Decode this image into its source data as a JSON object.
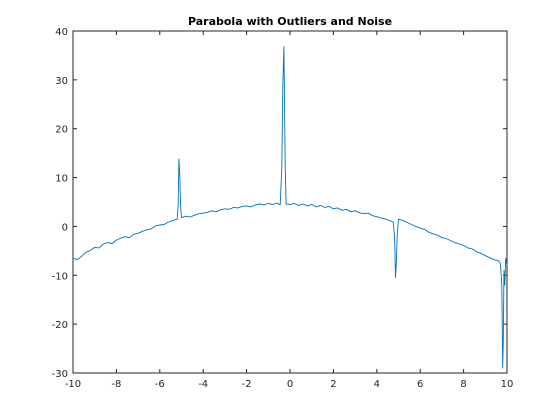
{
  "chart_data": {
    "type": "line",
    "title": "Parabola with Outliers and Noise",
    "xlabel": "",
    "ylabel": "",
    "xlim": [
      -10,
      10
    ],
    "ylim": [
      -30,
      40
    ],
    "xticks": [
      -10,
      -8,
      -6,
      -4,
      -2,
      0,
      2,
      4,
      6,
      8,
      10
    ],
    "yticks": [
      -30,
      -20,
      -10,
      0,
      10,
      20,
      30,
      40
    ],
    "grid": false,
    "legend": "none",
    "series": [
      {
        "color": "#0072bd",
        "curve": "-0.12*(x+0.5)^2 + 4.7 with small noise",
        "points": [
          [
            -10.0,
            -6.5
          ],
          [
            -9.8,
            -6.8
          ],
          [
            -9.6,
            -6.1
          ],
          [
            -9.4,
            -5.3
          ],
          [
            -9.2,
            -4.9
          ],
          [
            -9.0,
            -4.3
          ],
          [
            -8.8,
            -4.4
          ],
          [
            -8.6,
            -3.6
          ],
          [
            -8.4,
            -3.3
          ],
          [
            -8.2,
            -3.5
          ],
          [
            -8.0,
            -2.8
          ],
          [
            -7.8,
            -2.4
          ],
          [
            -7.6,
            -2.1
          ],
          [
            -7.4,
            -2.3
          ],
          [
            -7.2,
            -1.6
          ],
          [
            -7.0,
            -1.4
          ],
          [
            -6.8,
            -1.0
          ],
          [
            -6.6,
            -0.7
          ],
          [
            -6.4,
            -0.5
          ],
          [
            -6.2,
            0.1
          ],
          [
            -6.0,
            0.3
          ],
          [
            -5.8,
            0.4
          ],
          [
            -5.6,
            0.9
          ],
          [
            -5.4,
            1.2
          ],
          [
            -5.2,
            1.5
          ],
          [
            -5.15,
            4.5
          ],
          [
            -5.12,
            13.8
          ],
          [
            -5.08,
            10.5
          ],
          [
            -5.04,
            4.2
          ],
          [
            -5.0,
            1.8
          ],
          [
            -4.8,
            2.1
          ],
          [
            -4.6,
            1.9
          ],
          [
            -4.4,
            2.3
          ],
          [
            -4.2,
            2.6
          ],
          [
            -4.0,
            2.7
          ],
          [
            -3.8,
            2.9
          ],
          [
            -3.6,
            3.2
          ],
          [
            -3.4,
            3.0
          ],
          [
            -3.2,
            3.4
          ],
          [
            -3.0,
            3.6
          ],
          [
            -2.8,
            3.5
          ],
          [
            -2.6,
            3.9
          ],
          [
            -2.4,
            3.8
          ],
          [
            -2.2,
            4.1
          ],
          [
            -2.0,
            4.2
          ],
          [
            -1.8,
            4.0
          ],
          [
            -1.6,
            4.4
          ],
          [
            -1.4,
            4.6
          ],
          [
            -1.2,
            4.4
          ],
          [
            -1.0,
            4.7
          ],
          [
            -0.8,
            4.5
          ],
          [
            -0.6,
            4.8
          ],
          [
            -0.45,
            4.4
          ],
          [
            -0.38,
            12.0
          ],
          [
            -0.33,
            28.5
          ],
          [
            -0.28,
            36.8
          ],
          [
            -0.22,
            12.5
          ],
          [
            -0.18,
            4.6
          ],
          [
            0.0,
            4.5
          ],
          [
            0.2,
            4.7
          ],
          [
            0.4,
            4.3
          ],
          [
            0.6,
            4.6
          ],
          [
            0.8,
            4.2
          ],
          [
            1.0,
            4.5
          ],
          [
            1.2,
            4.0
          ],
          [
            1.4,
            4.3
          ],
          [
            1.6,
            3.9
          ],
          [
            1.8,
            4.1
          ],
          [
            2.0,
            3.6
          ],
          [
            2.2,
            3.8
          ],
          [
            2.4,
            3.3
          ],
          [
            2.6,
            3.5
          ],
          [
            2.8,
            3.0
          ],
          [
            3.0,
            3.2
          ],
          [
            3.2,
            2.8
          ],
          [
            3.4,
            2.6
          ],
          [
            3.6,
            2.7
          ],
          [
            3.8,
            2.2
          ],
          [
            4.0,
            2.0
          ],
          [
            4.2,
            1.7
          ],
          [
            4.4,
            1.5
          ],
          [
            4.6,
            1.2
          ],
          [
            4.75,
            0.9
          ],
          [
            4.82,
            -2.0
          ],
          [
            4.86,
            -10.5
          ],
          [
            4.9,
            -7.5
          ],
          [
            4.94,
            -1.8
          ],
          [
            5.0,
            1.5
          ],
          [
            5.2,
            1.2
          ],
          [
            5.4,
            0.8
          ],
          [
            5.6,
            0.4
          ],
          [
            5.8,
            0.0
          ],
          [
            6.0,
            -0.3
          ],
          [
            6.2,
            -0.6
          ],
          [
            6.4,
            -1.2
          ],
          [
            6.6,
            -1.5
          ],
          [
            6.8,
            -1.8
          ],
          [
            7.0,
            -2.3
          ],
          [
            7.2,
            -2.5
          ],
          [
            7.4,
            -2.9
          ],
          [
            7.6,
            -3.3
          ],
          [
            7.8,
            -3.6
          ],
          [
            8.0,
            -3.9
          ],
          [
            8.2,
            -4.4
          ],
          [
            8.4,
            -4.6
          ],
          [
            8.6,
            -5.2
          ],
          [
            8.8,
            -5.5
          ],
          [
            9.0,
            -6.0
          ],
          [
            9.2,
            -6.4
          ],
          [
            9.4,
            -6.8
          ],
          [
            9.6,
            -7.0
          ],
          [
            9.7,
            -7.6
          ],
          [
            9.76,
            -12.0
          ],
          [
            9.8,
            -29.0
          ],
          [
            9.83,
            -23.0
          ],
          [
            9.86,
            -9.0
          ],
          [
            9.9,
            -12.0
          ],
          [
            9.94,
            -6.5
          ],
          [
            10.0,
            -8.0
          ]
        ]
      }
    ]
  }
}
